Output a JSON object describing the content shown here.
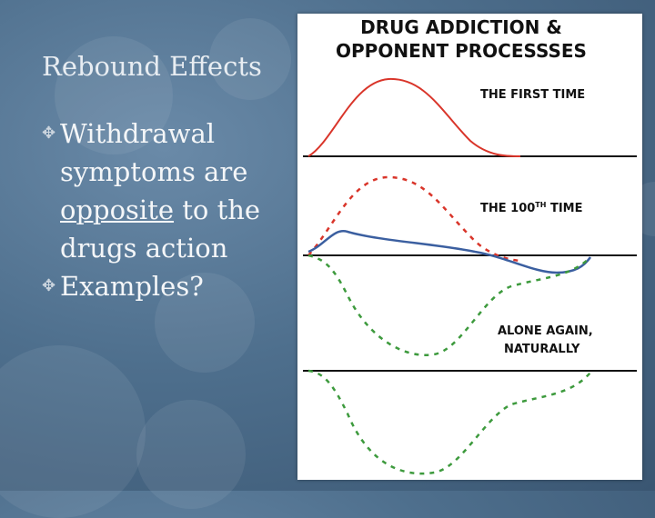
{
  "slide": {
    "title": "Rebound Effects",
    "bullets": [
      {
        "text_parts": [
          "Withdrawal",
          "symptoms are",
          "opposite",
          " to the",
          "drugs action"
        ]
      },
      {
        "text": "Examples?"
      }
    ]
  },
  "diagram": {
    "title_line1": "DRUG ADDICTION &",
    "title_line2": "OPPONENT PROCESSSES",
    "label_first_time": "THE FIRST TIME",
    "label_100th": "THE 100",
    "label_100th_sup": "TH",
    "label_100th_end": " TIME",
    "label_alone_line1": "ALONE AGAIN,",
    "label_alone_line2": "NATURALLY",
    "colors": {
      "drug_effect": "#d9352a",
      "net_effect": "#3b5fa0",
      "opponent": "#3d9a3d"
    }
  }
}
